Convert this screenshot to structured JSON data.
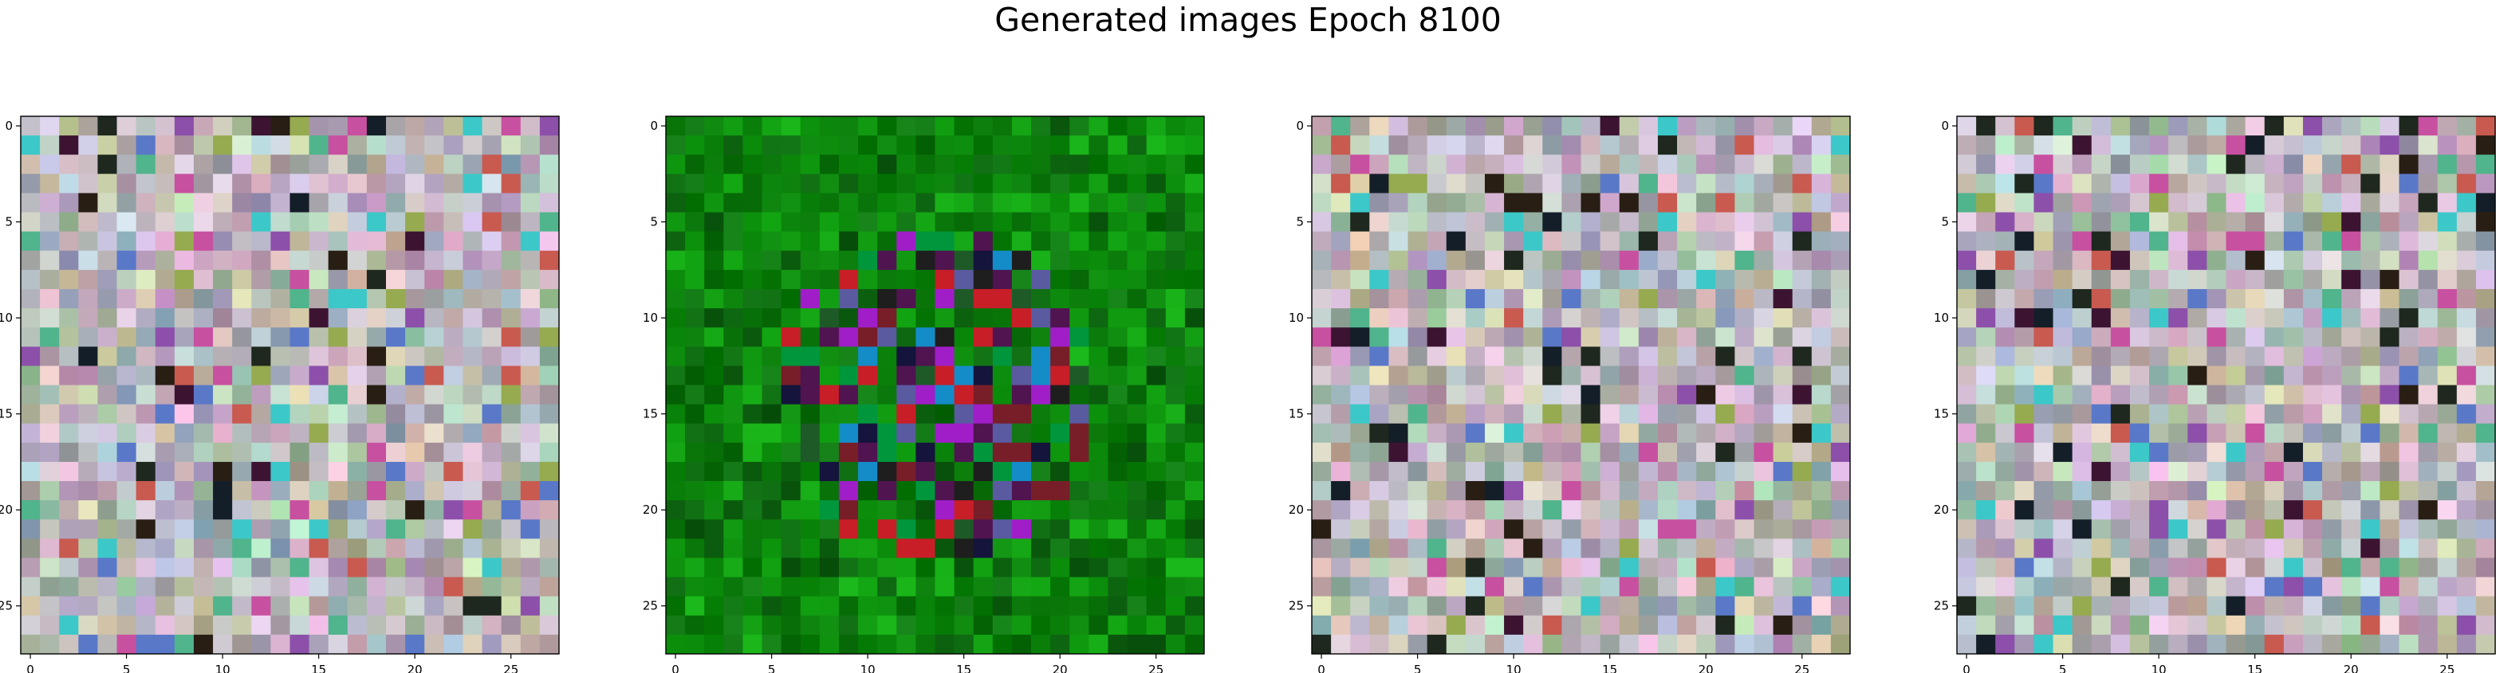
{
  "figure": {
    "title": "Generated images Epoch 8100"
  },
  "chart_data": {
    "type": "image_grid",
    "title": "Generated images Epoch 8100",
    "images": [
      {
        "name": "",
        "grid_size": [
          28,
          28
        ],
        "palette": "mixed pastel noise",
        "base_colors": [
          "#b8b0b8",
          "#c4b8c8",
          "#a8b8c0",
          "#c8c0a8",
          "#b0c8b0",
          "#d0b0c8"
        ]
      },
      {
        "name": "",
        "grid_size": [
          28,
          28
        ],
        "palette": "green with dark center",
        "base_colors": [
          "#0a8a0a",
          "#0b7a0b",
          "#129c12",
          "#0f6a12"
        ]
      },
      {
        "name": "",
        "grid_size": [
          28,
          28
        ],
        "palette": "mixed pastel noise",
        "base_colors": [
          "#b8b0b8",
          "#c4b8c8",
          "#a8b8c0",
          "#c8c0a8",
          "#b0c8b0",
          "#d0b0c8"
        ]
      },
      {
        "name": "",
        "grid_size": [
          28,
          28
        ],
        "palette": "mixed pastel noise",
        "base_colors": [
          "#b8b0b8",
          "#c4b8c8",
          "#a8b8c0",
          "#c8c0a8",
          "#b0c8b0",
          "#d0b0c8"
        ]
      }
    ],
    "x_ticks": [
      0,
      5,
      10,
      15,
      20,
      25
    ],
    "y_ticks": [
      0,
      5,
      10,
      15,
      20,
      25
    ],
    "xlim": [
      -0.5,
      27.5
    ],
    "ylim": [
      27.5,
      -0.5
    ],
    "grid": false,
    "legend": "none"
  }
}
